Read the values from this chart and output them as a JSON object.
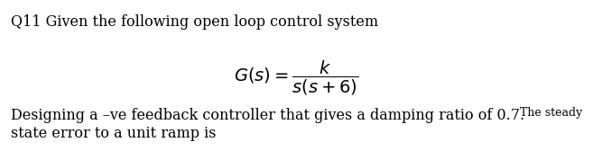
{
  "title_line": "Q11 Given the following open loop control system",
  "formula_full": "$G(s) = \\dfrac{k}{s(s + 6)}$",
  "body_line1_main": "Designing a –ve feedback controller that gives a damping ratio of 0.7.",
  "body_line1_small": " The steady",
  "body_line2": "state error to a unit ramp is",
  "background_color": "#ffffff",
  "text_color": "#000000",
  "title_fontsize": 11.5,
  "formula_fontsize": 14,
  "body_fontsize": 11.5,
  "small_fontsize": 9.0
}
